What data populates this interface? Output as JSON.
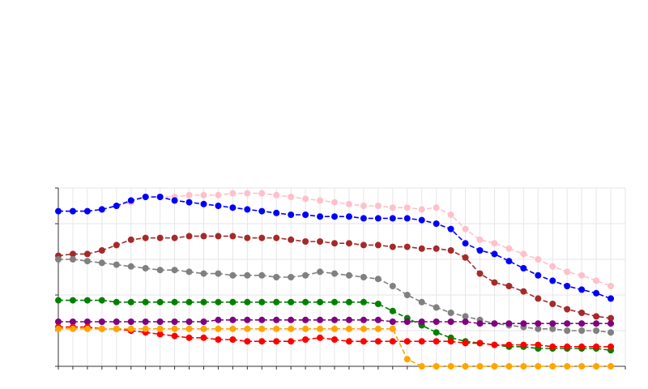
{
  "chart_data": {
    "type": "line",
    "title": "",
    "xlabel": "",
    "ylabel": "",
    "x": [
      0,
      1,
      2,
      3,
      4,
      5,
      6,
      7,
      8,
      9,
      10,
      11,
      12,
      13,
      14,
      15,
      16,
      17,
      18,
      19,
      20,
      21,
      22,
      23,
      24,
      25,
      26,
      27,
      28,
      29,
      30,
      31,
      32,
      33,
      34,
      35,
      36,
      37,
      38
    ],
    "xlim": [
      0,
      39
    ],
    "ylim": [
      0,
      100
    ],
    "grid": true,
    "legend": "none",
    "series": [
      {
        "color": "#ffc0cb",
        "linestyle": "dashed",
        "values": [
          87,
          87,
          87,
          88,
          90,
          92,
          95,
          95,
          95,
          96,
          96,
          96,
          97,
          97,
          97,
          96,
          95,
          94,
          93,
          92,
          91,
          90,
          90,
          89,
          89,
          88,
          89,
          85,
          77,
          71,
          69,
          66,
          63,
          60,
          56,
          53,
          51,
          48,
          45
        ]
      },
      {
        "color": "#0000ff",
        "linestyle": "dashed",
        "values": [
          87,
          87,
          87,
          88,
          90,
          93,
          95,
          95,
          93,
          92,
          91,
          90,
          89,
          88,
          87,
          86,
          85,
          85,
          84,
          84,
          84,
          83,
          83,
          83,
          83,
          82,
          80,
          77,
          69,
          65,
          63,
          59,
          55,
          51,
          48,
          45,
          43,
          41,
          38
        ]
      },
      {
        "color": "#a52a2a",
        "linestyle": "dashed",
        "values": [
          62,
          63,
          63,
          65,
          68,
          71,
          72,
          72,
          72,
          73,
          73,
          73,
          73,
          72,
          72,
          72,
          71,
          70,
          70,
          69,
          69,
          68,
          68,
          67,
          67,
          66,
          66,
          65,
          61,
          52,
          47,
          45,
          42,
          38,
          35,
          32,
          30,
          28,
          27
        ]
      },
      {
        "color": "#808080",
        "linestyle": "dashed",
        "values": [
          60,
          60,
          59,
          58,
          57,
          56,
          55,
          54,
          54,
          53,
          52,
          52,
          51,
          51,
          51,
          50,
          50,
          51,
          53,
          52,
          51,
          50,
          49,
          45,
          40,
          36,
          33,
          30,
          28,
          26,
          24,
          23,
          22,
          21,
          21,
          20,
          20,
          20,
          19
        ]
      },
      {
        "color": "#008000",
        "linestyle": "dashed",
        "values": [
          37,
          37,
          37,
          37,
          36,
          36,
          36,
          36,
          36,
          36,
          36,
          36,
          36,
          36,
          36,
          36,
          36,
          36,
          36,
          36,
          36,
          36,
          35,
          31,
          27,
          23,
          19,
          16,
          14,
          13,
          12,
          11,
          11,
          10,
          10,
          10,
          10,
          10,
          9
        ]
      },
      {
        "color": "#800080",
        "linestyle": "dashed",
        "values": [
          25,
          25,
          25,
          25,
          25,
          25,
          25,
          25,
          25,
          25,
          25,
          26,
          26,
          26,
          26,
          26,
          26,
          26,
          26,
          26,
          26,
          26,
          26,
          25,
          25,
          25,
          25,
          25,
          25,
          24,
          24,
          24,
          24,
          24,
          24,
          24,
          24,
          24,
          24
        ]
      },
      {
        "color": "#ff0000",
        "linestyle": "dashed",
        "values": [
          22,
          22,
          22,
          21,
          21,
          20,
          19,
          18,
          17,
          16,
          16,
          15,
          15,
          14,
          14,
          14,
          14,
          15,
          16,
          15,
          14,
          14,
          14,
          14,
          14,
          14,
          14,
          14,
          13,
          13,
          12,
          12,
          12,
          12,
          11,
          11,
          11,
          11,
          11
        ]
      },
      {
        "color": "#ffa500",
        "linestyle": "dashed",
        "values": [
          21,
          21,
          21,
          21,
          21,
          21,
          21,
          21,
          21,
          21,
          21,
          21,
          21,
          21,
          21,
          21,
          21,
          21,
          21,
          21,
          21,
          21,
          21,
          21,
          4,
          0,
          0,
          0,
          0,
          0,
          0,
          0,
          0,
          0,
          0,
          0,
          0,
          0,
          0
        ]
      }
    ]
  }
}
